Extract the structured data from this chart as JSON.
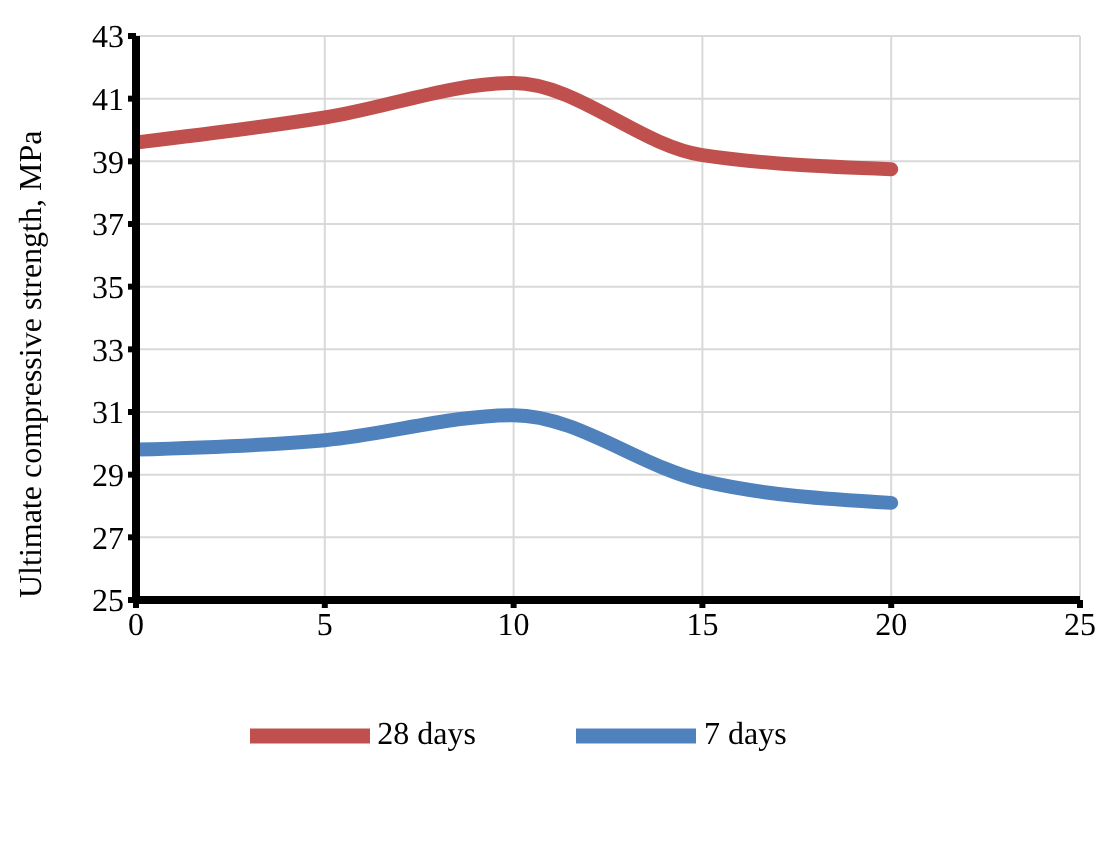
{
  "chart_data": {
    "type": "line",
    "ylabel": "Ultimate compressive strength, MPa",
    "x": [
      0,
      5,
      10,
      15,
      20
    ],
    "series": [
      {
        "name": "7 days",
        "color": "#4f81bd",
        "values": [
          29.8,
          30.1,
          30.9,
          28.8,
          28.1
        ]
      },
      {
        "name": "28 days",
        "color": "#c0504d",
        "values": [
          39.6,
          40.4,
          41.5,
          39.2,
          38.75
        ]
      }
    ],
    "xlim": [
      0,
      25
    ],
    "xticks": [
      0,
      5,
      10,
      15,
      20,
      25
    ],
    "ylim": [
      25,
      43
    ],
    "yticks": [
      25,
      27,
      29,
      31,
      33,
      35,
      37,
      39,
      41,
      43
    ],
    "grid": true,
    "legend": "bottom",
    "marker": "none",
    "line_style": "solid"
  }
}
